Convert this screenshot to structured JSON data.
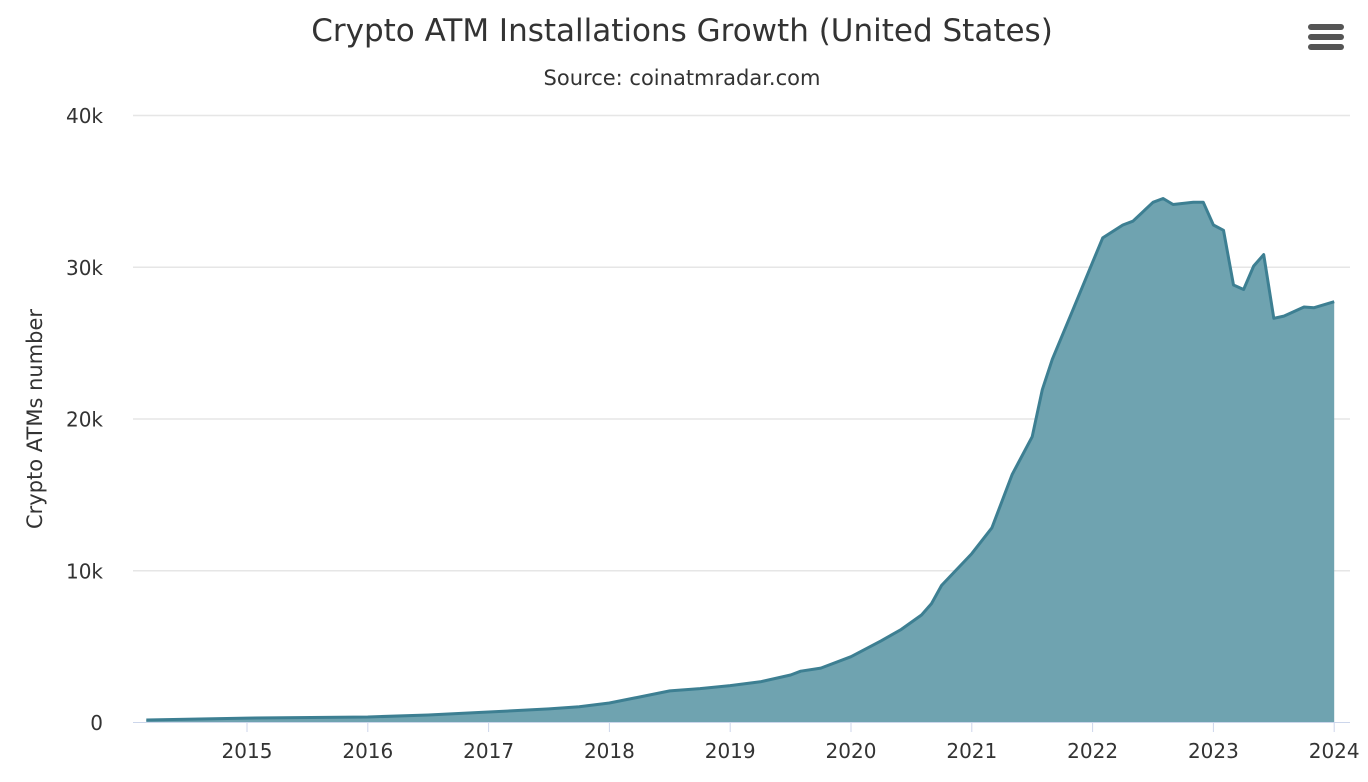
{
  "chart_data": {
    "type": "area",
    "title": "Crypto ATM Installations Growth (United States)",
    "subtitle": "Source: coinatmradar.com",
    "xlabel": "",
    "ylabel": "Crypto ATMs number",
    "ylim": [
      0,
      40000
    ],
    "yticks": [
      0,
      10000,
      20000,
      30000,
      40000
    ],
    "ytick_labels": [
      "0",
      "10k",
      "20k",
      "30k",
      "40k"
    ],
    "xticks": [
      "2015",
      "2016",
      "2017",
      "2018",
      "2019",
      "2020",
      "2021",
      "2022",
      "2023",
      "2024"
    ],
    "grid": true,
    "colors": {
      "fill": "#6fa3b0",
      "line": "#3d7f92"
    },
    "points": [
      [
        "2014-03",
        130
      ],
      [
        "2015-01",
        260
      ],
      [
        "2016-01",
        330
      ],
      [
        "2016-07",
        460
      ],
      [
        "2017-01",
        660
      ],
      [
        "2017-07",
        860
      ],
      [
        "2017-10",
        1000
      ],
      [
        "2018-01",
        1250
      ],
      [
        "2018-04",
        1650
      ],
      [
        "2018-07",
        2050
      ],
      [
        "2018-10",
        2200
      ],
      [
        "2019-01",
        2400
      ],
      [
        "2019-04",
        2650
      ],
      [
        "2019-07",
        3100
      ],
      [
        "2019-08",
        3350
      ],
      [
        "2019-10",
        3550
      ],
      [
        "2020-01",
        4300
      ],
      [
        "2020-04",
        5350
      ],
      [
        "2020-06",
        6100
      ],
      [
        "2020-08",
        7050
      ],
      [
        "2020-09",
        7800
      ],
      [
        "2020-10",
        9000
      ],
      [
        "2021-01",
        11100
      ],
      [
        "2021-03",
        12800
      ],
      [
        "2021-05",
        16300
      ],
      [
        "2021-07",
        18800
      ],
      [
        "2021-08",
        21900
      ],
      [
        "2021-09",
        23900
      ],
      [
        "2021-11",
        27100
      ],
      [
        "2022-01",
        30300
      ],
      [
        "2022-02",
        31900
      ],
      [
        "2022-04",
        32750
      ],
      [
        "2022-05",
        33000
      ],
      [
        "2022-07",
        34250
      ],
      [
        "2022-08",
        34500
      ],
      [
        "2022-09",
        34100
      ],
      [
        "2022-11",
        34250
      ],
      [
        "2022-12",
        34250
      ],
      [
        "2023-01",
        32750
      ],
      [
        "2023-02",
        32400
      ],
      [
        "2023-03",
        28800
      ],
      [
        "2023-04",
        28500
      ],
      [
        "2023-05",
        30050
      ],
      [
        "2023-06",
        30800
      ],
      [
        "2023-07",
        26600
      ],
      [
        "2023-08",
        26750
      ],
      [
        "2023-10",
        27350
      ],
      [
        "2023-11",
        27300
      ],
      [
        "2024-01",
        27700
      ]
    ]
  },
  "menu": {
    "icon": "hamburger-menu-icon"
  }
}
